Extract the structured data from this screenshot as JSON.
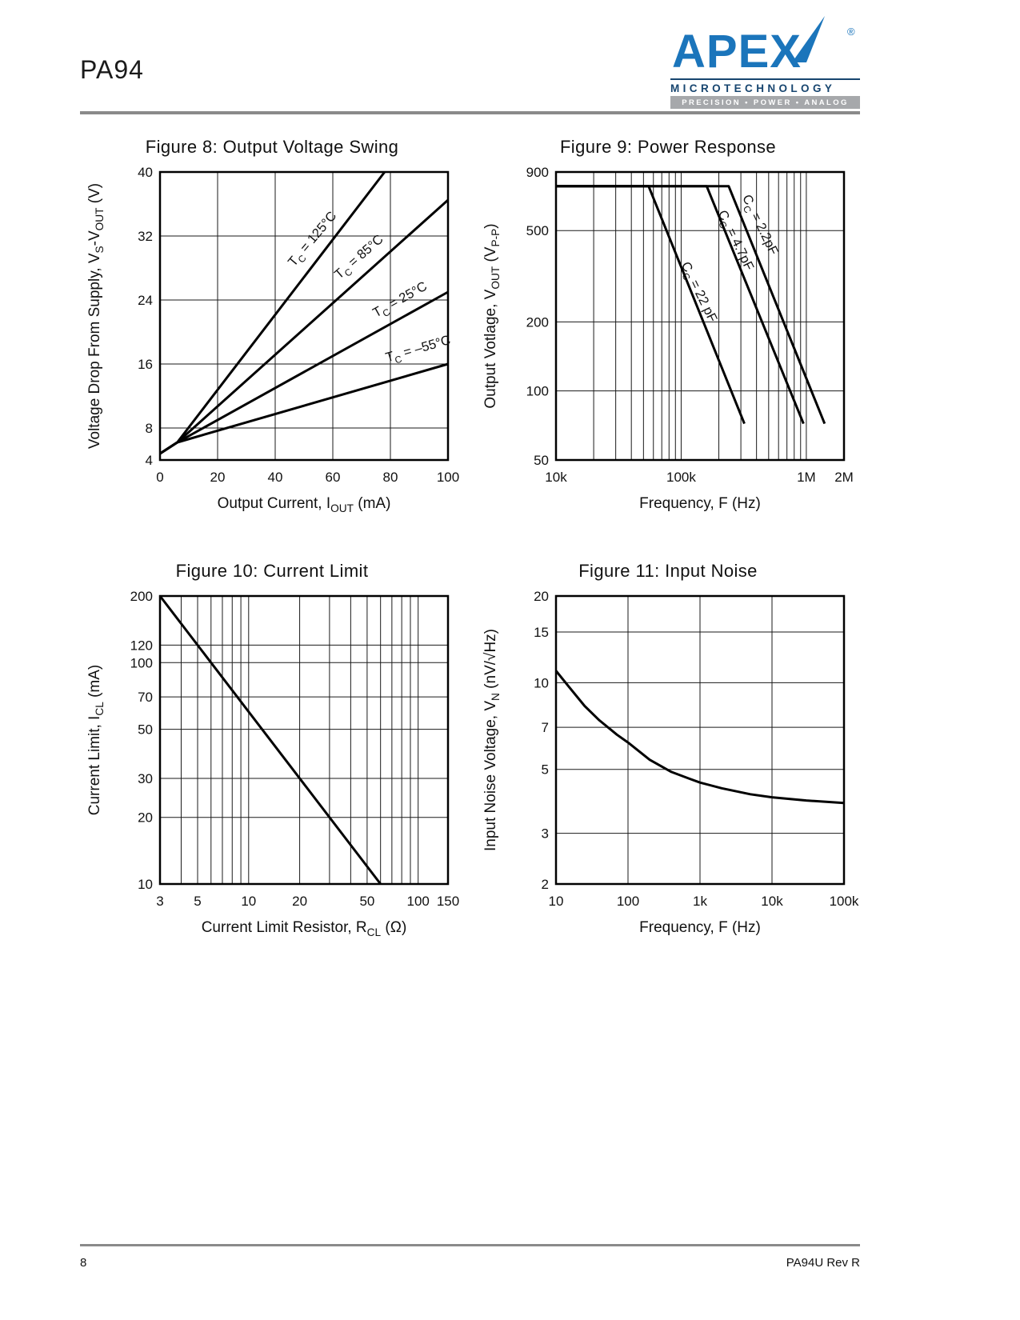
{
  "page": {
    "part_number": "PA94",
    "page_number": "8",
    "footer_right": "PA94U Rev R"
  },
  "logo": {
    "brand": "APEX",
    "registered": "®",
    "sub": "MICROTECHNOLOGY",
    "tagline": "PRECISION • POWER • ANALOG",
    "brand_color": "#1b75bb",
    "tagline_bar_color": "#a6a8ab"
  },
  "chart_data": [
    {
      "type": "line",
      "title": "Figure 8: Output Voltage Swing",
      "xscale": "linear",
      "yscale": "linear",
      "xlim": [
        0,
        100
      ],
      "ylim": [
        4,
        40
      ],
      "grid": "on",
      "legend": "inline-labels",
      "xticks": [
        {
          "v": 0,
          "l": "0"
        },
        {
          "v": 20,
          "l": "20"
        },
        {
          "v": 40,
          "l": "40"
        },
        {
          "v": 60,
          "l": "60"
        },
        {
          "v": 80,
          "l": "80"
        },
        {
          "v": 100,
          "l": "100"
        }
      ],
      "yticks": [
        {
          "v": 4,
          "l": "4"
        },
        {
          "v": 8,
          "l": "8"
        },
        {
          "v": 16,
          "l": "16"
        },
        {
          "v": 24,
          "l": "24"
        },
        {
          "v": 32,
          "l": "32"
        },
        {
          "v": 40,
          "l": "40"
        }
      ],
      "xlabel": [
        {
          "t": "Output Current, I"
        },
        {
          "t": "OUT",
          "sub": true
        },
        {
          "t": " (mA)"
        }
      ],
      "ylabel": [
        {
          "t": "Voltage Drop From Supply, V"
        },
        {
          "t": "S",
          "sub": true
        },
        {
          "t": "-V"
        },
        {
          "t": "OUT",
          "sub": true
        },
        {
          "t": " (V)"
        }
      ],
      "series": [
        {
          "name": "TC = 125°C",
          "points": [
            [
              0,
              4.8
            ],
            [
              6,
              6.2
            ],
            [
              78,
              40
            ]
          ]
        },
        {
          "name": "TC = 85°C",
          "points": [
            [
              0,
              4.8
            ],
            [
              6,
              6.2
            ],
            [
              100,
              36.5
            ]
          ]
        },
        {
          "name": "TC = 25°C",
          "points": [
            [
              0,
              4.8
            ],
            [
              6,
              6.2
            ],
            [
              100,
              25
            ]
          ]
        },
        {
          "name": "TC = –55°C",
          "points": [
            [
              0,
              4.8
            ],
            [
              6,
              6.2
            ],
            [
              100,
              16
            ]
          ]
        }
      ],
      "labels": [
        {
          "segs": [
            {
              "t": "T"
            },
            {
              "t": "C",
              "sub": true
            },
            {
              "t": " = 125°C"
            }
          ],
          "x": 54,
          "y": 31.3,
          "angle": -50
        },
        {
          "segs": [
            {
              "t": "T"
            },
            {
              "t": "C",
              "sub": true
            },
            {
              "t": " = 85°C"
            }
          ],
          "x": 70,
          "y": 29,
          "angle": -41
        },
        {
          "segs": [
            {
              "t": "T"
            },
            {
              "t": "C",
              "sub": true
            },
            {
              "t": " = 25°C"
            }
          ],
          "x": 84,
          "y": 23.6,
          "angle": -29
        },
        {
          "segs": [
            {
              "t": "T"
            },
            {
              "t": "C",
              "sub": true
            },
            {
              "t": " = –55°C"
            }
          ],
          "x": 90,
          "y": 17.4,
          "angle": -16
        }
      ]
    },
    {
      "type": "line",
      "title": "Figure 9: Power Response",
      "xscale": "log",
      "yscale": "log",
      "xlim": [
        10000,
        2000000
      ],
      "ylim": [
        50,
        900
      ],
      "grid": "on",
      "legend": "inline-labels",
      "xticks": [
        {
          "v": 10000,
          "l": "10k"
        },
        {
          "v": 100000,
          "l": "100k"
        },
        {
          "v": 1000000,
          "l": "1M"
        },
        {
          "v": 2000000,
          "l": "2M"
        }
      ],
      "xminor": [
        20000,
        30000,
        40000,
        50000,
        60000,
        70000,
        80000,
        90000,
        200000,
        300000,
        400000,
        500000,
        600000,
        700000,
        800000,
        900000
      ],
      "yticks": [
        {
          "v": 900,
          "l": "900"
        },
        {
          "v": 500,
          "l": "500"
        },
        {
          "v": 200,
          "l": "200"
        },
        {
          "v": 100,
          "l": "100"
        },
        {
          "v": 50,
          "l": "50"
        }
      ],
      "xlabel": [
        {
          "t": "Frequency, F (Hz)"
        }
      ],
      "ylabel": [
        {
          "t": "Output Votlage, V"
        },
        {
          "t": "OUT",
          "sub": true
        },
        {
          "t": " (V"
        },
        {
          "t": "P-P",
          "sub": true
        },
        {
          "t": ")"
        }
      ],
      "series": [
        {
          "name": "CC = 2.2pF",
          "points": [
            [
              10000,
              780
            ],
            [
              240000,
              780
            ],
            [
              1400000,
              72
            ]
          ]
        },
        {
          "name": "CC = 4.7pF",
          "points": [
            [
              10000,
              780
            ],
            [
              160000,
              780
            ],
            [
              950000,
              72
            ]
          ]
        },
        {
          "name": "CC = 22 pF",
          "points": [
            [
              10000,
              780
            ],
            [
              55000,
              780
            ],
            [
              320000,
              72
            ]
          ]
        }
      ],
      "labels": [
        {
          "segs": [
            {
              "t": "C"
            },
            {
              "t": "C",
              "sub": true
            },
            {
              "t": " = 2.2pF"
            }
          ],
          "x": 400000,
          "y": 520,
          "angle": 64
        },
        {
          "segs": [
            {
              "t": "C"
            },
            {
              "t": "C",
              "sub": true
            },
            {
              "t": " = 4.7pF"
            }
          ],
          "x": 255000,
          "y": 445,
          "angle": 64
        },
        {
          "segs": [
            {
              "t": "C"
            },
            {
              "t": "C",
              "sub": true
            },
            {
              "t": " = 22 pF"
            }
          ],
          "x": 130000,
          "y": 265,
          "angle": 64
        }
      ]
    },
    {
      "type": "line",
      "title": "Figure 10: Current Limit",
      "xscale": "log",
      "yscale": "log",
      "xlim": [
        3,
        150
      ],
      "ylim": [
        10,
        200
      ],
      "grid": "on",
      "legend": "none",
      "xticks": [
        {
          "v": 3,
          "l": "3"
        },
        {
          "v": 5,
          "l": "5"
        },
        {
          "v": 10,
          "l": "10"
        },
        {
          "v": 20,
          "l": "20"
        },
        {
          "v": 50,
          "l": "50"
        },
        {
          "v": 100,
          "l": "100"
        },
        {
          "v": 150,
          "l": "150"
        }
      ],
      "xminor": [
        4,
        6,
        7,
        8,
        9,
        30,
        40,
        60,
        70,
        80,
        90
      ],
      "yticks": [
        {
          "v": 200,
          "l": "200"
        },
        {
          "v": 120,
          "l": "120"
        },
        {
          "v": 100,
          "l": "100"
        },
        {
          "v": 70,
          "l": "70"
        },
        {
          "v": 50,
          "l": "50"
        },
        {
          "v": 30,
          "l": "30"
        },
        {
          "v": 20,
          "l": "20"
        },
        {
          "v": 10,
          "l": "10"
        }
      ],
      "xlabel": [
        {
          "t": "Current Limit Resistor, R"
        },
        {
          "t": "CL",
          "sub": true
        },
        {
          "t": " (Ω)"
        }
      ],
      "ylabel": [
        {
          "t": "Current Limit, I"
        },
        {
          "t": "CL",
          "sub": true
        },
        {
          "t": " (mA)"
        }
      ],
      "series": [
        {
          "name": "ICL vs RCL",
          "points": [
            [
              3,
              200
            ],
            [
              60,
              10
            ]
          ]
        }
      ],
      "labels": []
    },
    {
      "type": "line",
      "title": "Figure 11: Input Noise",
      "xscale": "log",
      "yscale": "log",
      "xlim": [
        10,
        100000
      ],
      "ylim": [
        2,
        20
      ],
      "grid": "on",
      "legend": "none",
      "xticks": [
        {
          "v": 10,
          "l": "10"
        },
        {
          "v": 100,
          "l": "100"
        },
        {
          "v": 1000,
          "l": "1k"
        },
        {
          "v": 10000,
          "l": "10k"
        },
        {
          "v": 100000,
          "l": "100k"
        }
      ],
      "yticks": [
        {
          "v": 20,
          "l": "20"
        },
        {
          "v": 15,
          "l": "15"
        },
        {
          "v": 10,
          "l": "10"
        },
        {
          "v": 7,
          "l": "7"
        },
        {
          "v": 5,
          "l": "5"
        },
        {
          "v": 3,
          "l": "3"
        },
        {
          "v": 2,
          "l": "2"
        }
      ],
      "xlabel": [
        {
          "t": "Frequency, F (Hz)"
        }
      ],
      "ylabel": [
        {
          "t": "Input Noise Voltage,  V"
        },
        {
          "t": "N",
          "sub": true
        },
        {
          "t": " (nV/√Hz)"
        }
      ],
      "series": [
        {
          "name": "input noise voltage",
          "points": [
            [
              10,
              11
            ],
            [
              15,
              9.7
            ],
            [
              25,
              8.3
            ],
            [
              40,
              7.4
            ],
            [
              70,
              6.6
            ],
            [
              100,
              6.2
            ],
            [
              200,
              5.4
            ],
            [
              400,
              4.9
            ],
            [
              700,
              4.65
            ],
            [
              1000,
              4.5
            ],
            [
              2000,
              4.3
            ],
            [
              5000,
              4.1
            ],
            [
              10000,
              4.0
            ],
            [
              30000,
              3.9
            ],
            [
              100000,
              3.82
            ]
          ]
        }
      ],
      "labels": []
    }
  ]
}
